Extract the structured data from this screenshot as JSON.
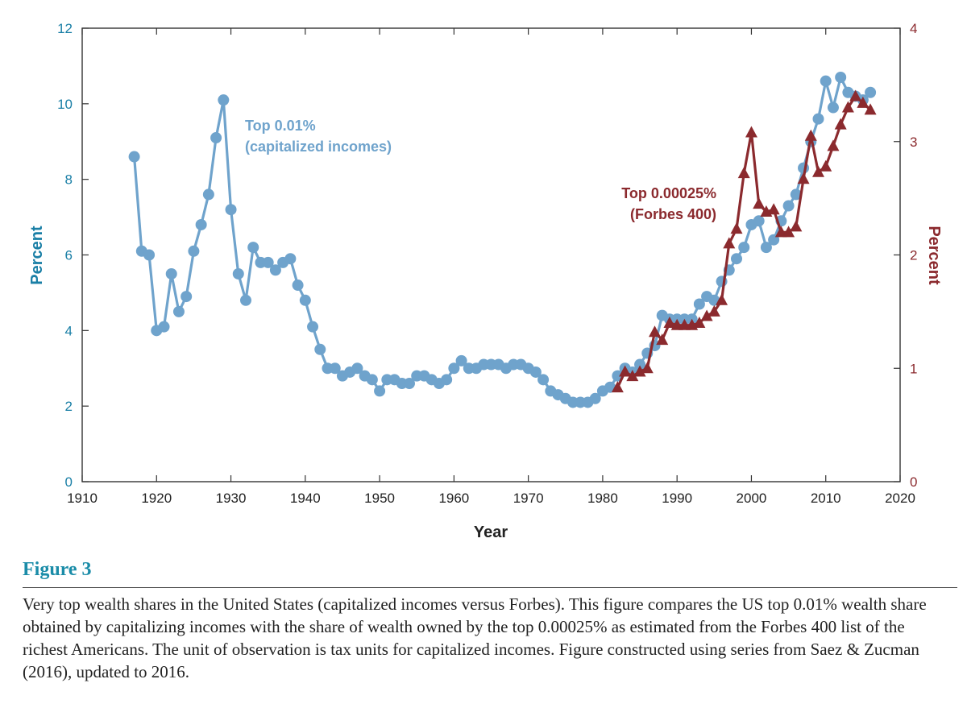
{
  "figure": {
    "label": "Figure 3",
    "caption": "Very top wealth shares in the United States (capitalized incomes versus Forbes). This figure compares the US top 0.01% wealth share obtained by capitalizing incomes with the share of wealth owned by the top 0.00025% as estimated from the Forbes 400 list of the richest Americans. The unit of observation is tax units for capitalized incomes. Figure constructed using series from Saez & Zucman (2016), updated to 2016."
  },
  "chart_data": {
    "type": "line",
    "title": "",
    "xlabel": "Year",
    "ylabel": "Percent",
    "ylabel_right": "Percent",
    "xlim": [
      1910,
      2020
    ],
    "ylim": [
      0,
      12
    ],
    "ylim_right": [
      0,
      4
    ],
    "x_ticks": [
      "1910",
      "1920",
      "1930",
      "1940",
      "1950",
      "1960",
      "1970",
      "1980",
      "1990",
      "2000",
      "2010",
      "2020"
    ],
    "y_ticks": [
      "0",
      "2",
      "4",
      "6",
      "8",
      "10",
      "12"
    ],
    "y_ticks_right": [
      "0",
      "1",
      "2",
      "3",
      "4"
    ],
    "grid": false,
    "colors": {
      "top001": "#6fa3cc",
      "forbes": "#8b2a2e",
      "left_axis_text": "#1a7fa6",
      "right_axis_text": "#8b2a2e"
    },
    "series": [
      {
        "name": "Top 0.01%",
        "name_line2": "(capitalized incomes)",
        "axis": "left",
        "marker": "circle",
        "x": [
          1917,
          1918,
          1919,
          1920,
          1921,
          1922,
          1923,
          1924,
          1925,
          1926,
          1927,
          1928,
          1929,
          1930,
          1931,
          1932,
          1933,
          1934,
          1935,
          1936,
          1937,
          1938,
          1939,
          1940,
          1941,
          1942,
          1943,
          1944,
          1945,
          1946,
          1947,
          1948,
          1949,
          1950,
          1951,
          1952,
          1953,
          1954,
          1955,
          1956,
          1957,
          1958,
          1959,
          1960,
          1961,
          1962,
          1963,
          1964,
          1965,
          1966,
          1967,
          1968,
          1969,
          1970,
          1971,
          1972,
          1973,
          1974,
          1975,
          1976,
          1977,
          1978,
          1979,
          1980,
          1981,
          1982,
          1983,
          1984,
          1985,
          1986,
          1987,
          1988,
          1989,
          1990,
          1991,
          1992,
          1993,
          1994,
          1995,
          1996,
          1997,
          1998,
          1999,
          2000,
          2001,
          2002,
          2003,
          2004,
          2005,
          2006,
          2007,
          2008,
          2009,
          2010,
          2011,
          2012,
          2013,
          2014,
          2015,
          2016
        ],
        "y": [
          8.6,
          6.1,
          6.0,
          4.0,
          4.1,
          5.5,
          4.5,
          4.9,
          6.1,
          6.8,
          7.6,
          9.1,
          10.1,
          7.2,
          5.5,
          4.8,
          6.2,
          5.8,
          5.8,
          5.6,
          5.8,
          5.9,
          5.2,
          4.8,
          4.1,
          3.5,
          3.0,
          3.0,
          2.8,
          2.9,
          3.0,
          2.8,
          2.7,
          2.4,
          2.7,
          2.7,
          2.6,
          2.6,
          2.8,
          2.8,
          2.7,
          2.6,
          2.7,
          3.0,
          3.2,
          3.0,
          3.0,
          3.1,
          3.1,
          3.1,
          3.0,
          3.1,
          3.1,
          3.0,
          2.9,
          2.7,
          2.4,
          2.3,
          2.2,
          2.1,
          2.1,
          2.1,
          2.2,
          2.4,
          2.5,
          2.8,
          3.0,
          2.9,
          3.1,
          3.4,
          3.6,
          4.4,
          4.3,
          4.3,
          4.3,
          4.3,
          4.7,
          4.9,
          4.8,
          5.3,
          5.6,
          5.9,
          6.2,
          6.8,
          6.9,
          6.2,
          6.4,
          6.9,
          7.3,
          7.6,
          8.3,
          9.0,
          9.6,
          10.6,
          9.9,
          10.7,
          10.3,
          10.2,
          10.1,
          10.3
        ]
      },
      {
        "name": "Top 0.00025%",
        "name_line2": "(Forbes 400)",
        "axis": "right",
        "marker": "triangle",
        "x": [
          1982,
          1983,
          1984,
          1985,
          1986,
          1987,
          1988,
          1989,
          1990,
          1991,
          1992,
          1993,
          1994,
          1995,
          1996,
          1997,
          1998,
          1999,
          2000,
          2001,
          2002,
          2003,
          2004,
          2005,
          2006,
          2007,
          2008,
          2009,
          2010,
          2011,
          2012,
          2013,
          2014,
          2015,
          2016
        ],
        "y": [
          0.83,
          0.97,
          0.93,
          0.97,
          1.0,
          1.32,
          1.25,
          1.4,
          1.38,
          1.38,
          1.38,
          1.4,
          1.46,
          1.5,
          1.6,
          2.1,
          2.23,
          2.72,
          3.08,
          2.45,
          2.38,
          2.4,
          2.2,
          2.2,
          2.25,
          2.67,
          3.05,
          2.73,
          2.78,
          2.96,
          3.15,
          3.3,
          3.4,
          3.34,
          3.28
        ]
      }
    ]
  }
}
